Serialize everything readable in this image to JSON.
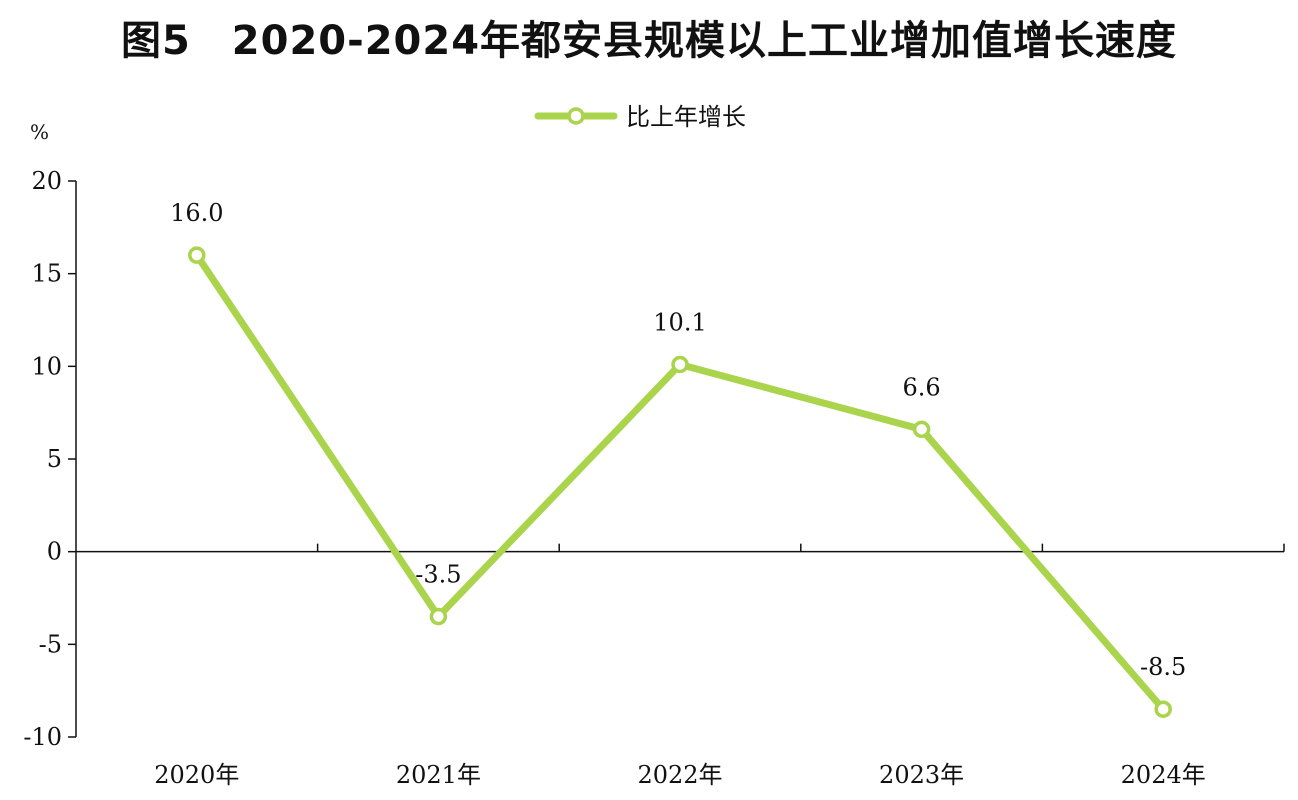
{
  "chart_data": {
    "type": "line",
    "title": "图5　2020-2024年都安县规模以上工业增加值增长速度",
    "ylabel": "%",
    "xlabel": "",
    "categories": [
      "2020年",
      "2021年",
      "2022年",
      "2023年",
      "2024年"
    ],
    "series": [
      {
        "name": "比上年增长",
        "values": [
          16.0,
          -3.5,
          10.1,
          6.6,
          -8.5
        ],
        "labels": [
          "16.0",
          "-3.5",
          "10.1",
          "6.6",
          "-8.5"
        ],
        "color": "#a9d44b"
      }
    ],
    "ylim": [
      -10,
      20
    ],
    "yticks": [
      20,
      15,
      10,
      5,
      0,
      -5,
      -10
    ],
    "ytick_labels": [
      "20",
      "15",
      "10",
      "5",
      "0",
      "-5",
      "-10"
    ],
    "legend": "top-center",
    "grid": false
  }
}
